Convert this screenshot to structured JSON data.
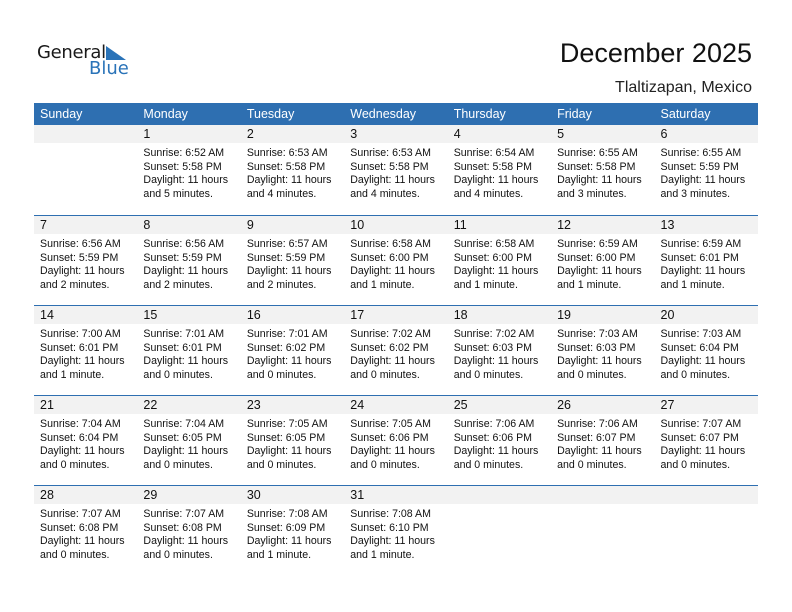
{
  "logo": {
    "line1": "General",
    "line2": "Blue",
    "color": "#2a73b8"
  },
  "title": "December 2025",
  "location": "Tlaltizapan, Mexico",
  "colors": {
    "header": "#2e6fb1",
    "strip": "#f2f2f2"
  },
  "weekdays": [
    "Sunday",
    "Monday",
    "Tuesday",
    "Wednesday",
    "Thursday",
    "Friday",
    "Saturday"
  ],
  "weeks": [
    [
      null,
      {
        "day": "1",
        "sunrise": "Sunrise: 6:52 AM",
        "sunset": "Sunset: 5:58 PM",
        "daylight": "Daylight: 11 hours",
        "daylight2": "and 5 minutes."
      },
      {
        "day": "2",
        "sunrise": "Sunrise: 6:53 AM",
        "sunset": "Sunset: 5:58 PM",
        "daylight": "Daylight: 11 hours",
        "daylight2": "and 4 minutes."
      },
      {
        "day": "3",
        "sunrise": "Sunrise: 6:53 AM",
        "sunset": "Sunset: 5:58 PM",
        "daylight": "Daylight: 11 hours",
        "daylight2": "and 4 minutes."
      },
      {
        "day": "4",
        "sunrise": "Sunrise: 6:54 AM",
        "sunset": "Sunset: 5:58 PM",
        "daylight": "Daylight: 11 hours",
        "daylight2": "and 4 minutes."
      },
      {
        "day": "5",
        "sunrise": "Sunrise: 6:55 AM",
        "sunset": "Sunset: 5:58 PM",
        "daylight": "Daylight: 11 hours",
        "daylight2": "and 3 minutes."
      },
      {
        "day": "6",
        "sunrise": "Sunrise: 6:55 AM",
        "sunset": "Sunset: 5:59 PM",
        "daylight": "Daylight: 11 hours",
        "daylight2": "and 3 minutes."
      }
    ],
    [
      {
        "day": "7",
        "sunrise": "Sunrise: 6:56 AM",
        "sunset": "Sunset: 5:59 PM",
        "daylight": "Daylight: 11 hours",
        "daylight2": "and 2 minutes."
      },
      {
        "day": "8",
        "sunrise": "Sunrise: 6:56 AM",
        "sunset": "Sunset: 5:59 PM",
        "daylight": "Daylight: 11 hours",
        "daylight2": "and 2 minutes."
      },
      {
        "day": "9",
        "sunrise": "Sunrise: 6:57 AM",
        "sunset": "Sunset: 5:59 PM",
        "daylight": "Daylight: 11 hours",
        "daylight2": "and 2 minutes."
      },
      {
        "day": "10",
        "sunrise": "Sunrise: 6:58 AM",
        "sunset": "Sunset: 6:00 PM",
        "daylight": "Daylight: 11 hours",
        "daylight2": "and 1 minute."
      },
      {
        "day": "11",
        "sunrise": "Sunrise: 6:58 AM",
        "sunset": "Sunset: 6:00 PM",
        "daylight": "Daylight: 11 hours",
        "daylight2": "and 1 minute."
      },
      {
        "day": "12",
        "sunrise": "Sunrise: 6:59 AM",
        "sunset": "Sunset: 6:00 PM",
        "daylight": "Daylight: 11 hours",
        "daylight2": "and 1 minute."
      },
      {
        "day": "13",
        "sunrise": "Sunrise: 6:59 AM",
        "sunset": "Sunset: 6:01 PM",
        "daylight": "Daylight: 11 hours",
        "daylight2": "and 1 minute."
      }
    ],
    [
      {
        "day": "14",
        "sunrise": "Sunrise: 7:00 AM",
        "sunset": "Sunset: 6:01 PM",
        "daylight": "Daylight: 11 hours",
        "daylight2": "and 1 minute."
      },
      {
        "day": "15",
        "sunrise": "Sunrise: 7:01 AM",
        "sunset": "Sunset: 6:01 PM",
        "daylight": "Daylight: 11 hours",
        "daylight2": "and 0 minutes."
      },
      {
        "day": "16",
        "sunrise": "Sunrise: 7:01 AM",
        "sunset": "Sunset: 6:02 PM",
        "daylight": "Daylight: 11 hours",
        "daylight2": "and 0 minutes."
      },
      {
        "day": "17",
        "sunrise": "Sunrise: 7:02 AM",
        "sunset": "Sunset: 6:02 PM",
        "daylight": "Daylight: 11 hours",
        "daylight2": "and 0 minutes."
      },
      {
        "day": "18",
        "sunrise": "Sunrise: 7:02 AM",
        "sunset": "Sunset: 6:03 PM",
        "daylight": "Daylight: 11 hours",
        "daylight2": "and 0 minutes."
      },
      {
        "day": "19",
        "sunrise": "Sunrise: 7:03 AM",
        "sunset": "Sunset: 6:03 PM",
        "daylight": "Daylight: 11 hours",
        "daylight2": "and 0 minutes."
      },
      {
        "day": "20",
        "sunrise": "Sunrise: 7:03 AM",
        "sunset": "Sunset: 6:04 PM",
        "daylight": "Daylight: 11 hours",
        "daylight2": "and 0 minutes."
      }
    ],
    [
      {
        "day": "21",
        "sunrise": "Sunrise: 7:04 AM",
        "sunset": "Sunset: 6:04 PM",
        "daylight": "Daylight: 11 hours",
        "daylight2": "and 0 minutes."
      },
      {
        "day": "22",
        "sunrise": "Sunrise: 7:04 AM",
        "sunset": "Sunset: 6:05 PM",
        "daylight": "Daylight: 11 hours",
        "daylight2": "and 0 minutes."
      },
      {
        "day": "23",
        "sunrise": "Sunrise: 7:05 AM",
        "sunset": "Sunset: 6:05 PM",
        "daylight": "Daylight: 11 hours",
        "daylight2": "and 0 minutes."
      },
      {
        "day": "24",
        "sunrise": "Sunrise: 7:05 AM",
        "sunset": "Sunset: 6:06 PM",
        "daylight": "Daylight: 11 hours",
        "daylight2": "and 0 minutes."
      },
      {
        "day": "25",
        "sunrise": "Sunrise: 7:06 AM",
        "sunset": "Sunset: 6:06 PM",
        "daylight": "Daylight: 11 hours",
        "daylight2": "and 0 minutes."
      },
      {
        "day": "26",
        "sunrise": "Sunrise: 7:06 AM",
        "sunset": "Sunset: 6:07 PM",
        "daylight": "Daylight: 11 hours",
        "daylight2": "and 0 minutes."
      },
      {
        "day": "27",
        "sunrise": "Sunrise: 7:07 AM",
        "sunset": "Sunset: 6:07 PM",
        "daylight": "Daylight: 11 hours",
        "daylight2": "and 0 minutes."
      }
    ],
    [
      {
        "day": "28",
        "sunrise": "Sunrise: 7:07 AM",
        "sunset": "Sunset: 6:08 PM",
        "daylight": "Daylight: 11 hours",
        "daylight2": "and 0 minutes."
      },
      {
        "day": "29",
        "sunrise": "Sunrise: 7:07 AM",
        "sunset": "Sunset: 6:08 PM",
        "daylight": "Daylight: 11 hours",
        "daylight2": "and 0 minutes."
      },
      {
        "day": "30",
        "sunrise": "Sunrise: 7:08 AM",
        "sunset": "Sunset: 6:09 PM",
        "daylight": "Daylight: 11 hours",
        "daylight2": "and 1 minute."
      },
      {
        "day": "31",
        "sunrise": "Sunrise: 7:08 AM",
        "sunset": "Sunset: 6:10 PM",
        "daylight": "Daylight: 11 hours",
        "daylight2": "and 1 minute."
      },
      null,
      null,
      null
    ]
  ]
}
